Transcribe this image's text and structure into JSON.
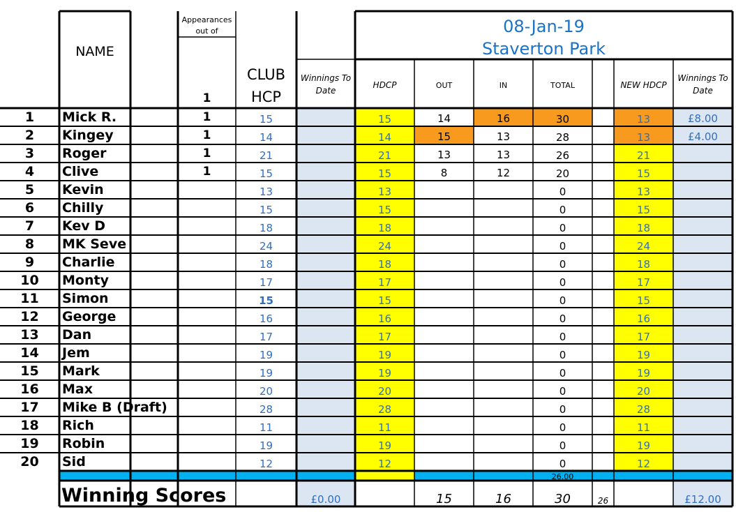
{
  "header": {
    "name_label": "NAME",
    "appearances_label_1": "Appearances",
    "appearances_label_2": "out of",
    "appearances_total": "1",
    "club_label_1": "CLUB",
    "club_label_2": "HCP",
    "winnings_label_1": "Winnings To",
    "winnings_label_2": "Date",
    "date": "08-Jan-19",
    "venue": "Staverton Park",
    "hdcp_label": "HDCP",
    "out_label": "OUT",
    "in_label": "IN",
    "total_label": "TOTAL",
    "new_hdcp_label": "NEW HDCP",
    "winnings2_label_1": "Winnings To",
    "winnings2_label_2": "Date"
  },
  "colors": {
    "yellow": "#ffff00",
    "orange": "#f79a1e",
    "light_blue": "#dce6f2",
    "cyan": "#00b0f0",
    "blue_text": "#2f6fbf"
  },
  "rows": [
    {
      "num": "1",
      "name": "Mick R.",
      "app": "1",
      "club": "15",
      "hdcp": "15",
      "out": "14",
      "in": "16",
      "total": "30",
      "new_hdcp": "13",
      "winnings": "£8.00",
      "hl_in": true,
      "hl_total": true,
      "hl_out": false,
      "new_orange": true
    },
    {
      "num": "2",
      "name": "Kingey",
      "app": "1",
      "club": "14",
      "hdcp": "14",
      "out": "15",
      "in": "13",
      "total": "28",
      "new_hdcp": "13",
      "winnings": "£4.00",
      "hl_out": true,
      "new_orange": true
    },
    {
      "num": "3",
      "name": "Roger",
      "app": "1",
      "club": "21",
      "hdcp": "21",
      "out": "13",
      "in": "13",
      "total": "26",
      "new_hdcp": "21",
      "winnings": ""
    },
    {
      "num": "4",
      "name": "Clive",
      "app": "1",
      "club": "15",
      "hdcp": "15",
      "out": "8",
      "in": "12",
      "total": "20",
      "new_hdcp": "15",
      "winnings": ""
    },
    {
      "num": "5",
      "name": "Kevin",
      "app": "",
      "club": "13",
      "hdcp": "13",
      "out": "",
      "in": "",
      "total": "0",
      "new_hdcp": "13",
      "winnings": ""
    },
    {
      "num": "6",
      "name": "Chilly",
      "app": "",
      "club": "15",
      "hdcp": "15",
      "out": "",
      "in": "",
      "total": "0",
      "new_hdcp": "15",
      "winnings": ""
    },
    {
      "num": "7",
      "name": "Kev D",
      "app": "",
      "club": "18",
      "hdcp": "18",
      "out": "",
      "in": "",
      "total": "0",
      "new_hdcp": "18",
      "winnings": ""
    },
    {
      "num": "8",
      "name": "MK Seve",
      "app": "",
      "club": "24",
      "hdcp": "24",
      "out": "",
      "in": "",
      "total": "0",
      "new_hdcp": "24",
      "winnings": ""
    },
    {
      "num": "9",
      "name": "Charlie",
      "app": "",
      "club": "18",
      "hdcp": "18",
      "out": "",
      "in": "",
      "total": "0",
      "new_hdcp": "18",
      "winnings": ""
    },
    {
      "num": "10",
      "name": "Monty",
      "app": "",
      "club": "17",
      "hdcp": "17",
      "out": "",
      "in": "",
      "total": "0",
      "new_hdcp": "17",
      "winnings": ""
    },
    {
      "num": "11",
      "name": "Simon",
      "app": "",
      "club": "15",
      "club_bold": true,
      "hdcp": "15",
      "out": "",
      "in": "",
      "total": "0",
      "new_hdcp": "15",
      "winnings": ""
    },
    {
      "num": "12",
      "name": "George",
      "app": "",
      "club": "16",
      "hdcp": "16",
      "out": "",
      "in": "",
      "total": "0",
      "new_hdcp": "16",
      "winnings": ""
    },
    {
      "num": "13",
      "name": "Dan",
      "app": "",
      "club": "17",
      "hdcp": "17",
      "out": "",
      "in": "",
      "total": "0",
      "new_hdcp": "17",
      "winnings": ""
    },
    {
      "num": "14",
      "name": "Jem",
      "app": "",
      "club": "19",
      "hdcp": "19",
      "out": "",
      "in": "",
      "total": "0",
      "new_hdcp": "19",
      "winnings": ""
    },
    {
      "num": "15",
      "name": "Mark",
      "app": "",
      "club": "19",
      "hdcp": "19",
      "out": "",
      "in": "",
      "total": "0",
      "new_hdcp": "19",
      "winnings": ""
    },
    {
      "num": "16",
      "name": "Max",
      "app": "",
      "club": "20",
      "hdcp": "20",
      "out": "",
      "in": "",
      "total": "0",
      "new_hdcp": "20",
      "winnings": ""
    },
    {
      "num": "17",
      "name": "Mike B (Draft)",
      "app": "",
      "club": "28",
      "hdcp": "28",
      "out": "",
      "in": "",
      "total": "0",
      "new_hdcp": "28",
      "winnings": ""
    },
    {
      "num": "18",
      "name": "Rich",
      "app": "",
      "club": "11",
      "hdcp": "11",
      "out": "",
      "in": "",
      "total": "0",
      "new_hdcp": "11",
      "winnings": ""
    },
    {
      "num": "19",
      "name": "Robin",
      "app": "",
      "club": "19",
      "hdcp": "19",
      "out": "",
      "in": "",
      "total": "0",
      "new_hdcp": "19",
      "winnings": ""
    },
    {
      "num": "20",
      "name": "Sid",
      "app": "",
      "club": "12",
      "hdcp": "12",
      "out": "",
      "in": "",
      "total": "0",
      "new_hdcp": "12",
      "winnings": ""
    }
  ],
  "total_row": {
    "total": "26.00"
  },
  "footer": {
    "label": "Winning Scores",
    "winnings_total": "£0.00",
    "out": "15",
    "in": "16",
    "total": "30",
    "extra": "26",
    "winnings2_total": "£12.00"
  }
}
